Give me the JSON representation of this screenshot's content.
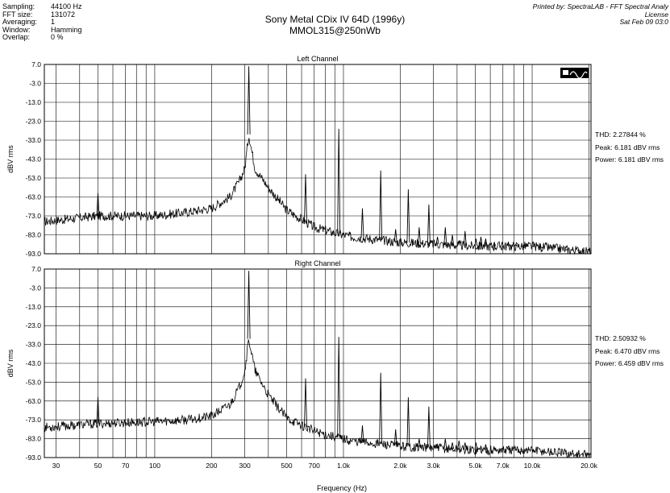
{
  "info": {
    "rows": [
      {
        "label": "Sampling:",
        "value": "44100 Hz"
      },
      {
        "label": "FFT size:",
        "value": "131072"
      },
      {
        "label": "Averaging:",
        "value": "1"
      },
      {
        "label": "Window:",
        "value": "Hamming"
      },
      {
        "label": "Overlap:",
        "value": "0 %"
      }
    ]
  },
  "header": {
    "title_line1": "Sony Metal CDix IV 64D (1996y)",
    "title_line2": "MMOL315@250nWb",
    "printed_line1": "Printed by: SpectraLAB - FFT Spectral Analy",
    "printed_line2": "License",
    "printed_line3": "Sat Feb 09 03:0"
  },
  "colors": {
    "trace": "#000000",
    "grid": "#000000",
    "background": "#ffffff"
  },
  "icons": {
    "toolbar": "waveform-display-icon"
  },
  "chart_data": [
    {
      "type": "line",
      "title": "Left Channel",
      "xlabel": "Frequency (Hz)",
      "ylabel": "dBV rms",
      "xscale": "log",
      "xlim": [
        26,
        20500
      ],
      "ylim": [
        -93,
        7
      ],
      "yticks": [
        "7.0",
        "-3.0",
        "-13.0",
        "-23.0",
        "-33.0",
        "-43.0",
        "-53.0",
        "-63.0",
        "-73.0",
        "-83.0",
        "-93.0"
      ],
      "grid": true,
      "stats": [
        "THD: 2.27844 %",
        "Peak: 6.181 dBV rms",
        "Power: 6.181 dBV rms"
      ],
      "series": [
        {
          "noise_floor": [
            [
              26,
              -76
            ],
            [
              50,
              -73
            ],
            [
              100,
              -73
            ],
            [
              150,
              -71
            ],
            [
              200,
              -69
            ],
            [
              250,
              -63
            ],
            [
              280,
              -55
            ],
            [
              300,
              -48
            ],
            [
              315,
              -30
            ],
            [
              340,
              -48
            ],
            [
              400,
              -58
            ],
            [
              500,
              -70
            ],
            [
              700,
              -79
            ],
            [
              900,
              -82
            ],
            [
              1100,
              -84
            ],
            [
              2000,
              -87
            ],
            [
              5000,
              -89
            ],
            [
              10000,
              -89
            ],
            [
              20500,
              -92
            ]
          ],
          "peaks": [
            [
              50,
              -61
            ],
            [
              315,
              6
            ],
            [
              630,
              -51
            ],
            [
              945,
              -27
            ],
            [
              1260,
              -69
            ],
            [
              1575,
              -49
            ],
            [
              1890,
              -80
            ],
            [
              2205,
              -59
            ],
            [
              2520,
              -79
            ],
            [
              2835,
              -67
            ],
            [
              3150,
              -84
            ],
            [
              3465,
              -79
            ],
            [
              3780,
              -83
            ],
            [
              4095,
              -86
            ],
            [
              4410,
              -81
            ],
            [
              5040,
              -85
            ],
            [
              5355,
              -84
            ],
            [
              5670,
              -85
            ],
            [
              6300,
              -87
            ],
            [
              6930,
              -87
            ],
            [
              7560,
              -88
            ],
            [
              8190,
              -88
            ],
            [
              8820,
              -89
            ],
            [
              9450,
              -89
            ],
            [
              10080,
              -89
            ],
            [
              11340,
              -90
            ],
            [
              12600,
              -90
            ],
            [
              13860,
              -90
            ],
            [
              15120,
              -91
            ],
            [
              16380,
              -91
            ],
            [
              17640,
              -91
            ]
          ]
        }
      ]
    },
    {
      "type": "line",
      "title": "Right Channel",
      "xlabel": "Frequency (Hz)",
      "ylabel": "dBV rms",
      "xscale": "log",
      "xlim": [
        26,
        20500
      ],
      "ylim": [
        -93,
        7
      ],
      "yticks": [
        "7.0",
        "-3.0",
        "-13.0",
        "-23.0",
        "-33.0",
        "-43.0",
        "-53.0",
        "-63.0",
        "-73.0",
        "-83.0",
        "-93.0"
      ],
      "grid": true,
      "stats": [
        "THD: 2.50932 %",
        "Peak: 6.470 dBV rms",
        "Power: 6.459 dBV rms"
      ],
      "series": [
        {
          "noise_floor": [
            [
              26,
              -77
            ],
            [
              50,
              -75
            ],
            [
              100,
              -74
            ],
            [
              150,
              -73
            ],
            [
              200,
              -71
            ],
            [
              250,
              -65
            ],
            [
              280,
              -56
            ],
            [
              300,
              -47
            ],
            [
              315,
              -30
            ],
            [
              340,
              -47
            ],
            [
              400,
              -60
            ],
            [
              500,
              -72
            ],
            [
              700,
              -79
            ],
            [
              900,
              -82
            ],
            [
              1100,
              -84
            ],
            [
              2000,
              -87
            ],
            [
              5000,
              -89
            ],
            [
              10000,
              -89
            ],
            [
              20500,
              -92
            ]
          ],
          "peaks": [
            [
              50,
              -61
            ],
            [
              315,
              6
            ],
            [
              630,
              -51
            ],
            [
              945,
              -29
            ],
            [
              1260,
              -76
            ],
            [
              1575,
              -48
            ],
            [
              1890,
              -78
            ],
            [
              2205,
              -61
            ],
            [
              2520,
              -83
            ],
            [
              2835,
              -66
            ],
            [
              3150,
              -86
            ],
            [
              3465,
              -83
            ],
            [
              3780,
              -85
            ],
            [
              4095,
              -84
            ],
            [
              4410,
              -85
            ],
            [
              5040,
              -85
            ],
            [
              5355,
              -87
            ],
            [
              5670,
              -86
            ],
            [
              6300,
              -88
            ],
            [
              6930,
              -88
            ],
            [
              7560,
              -88
            ],
            [
              8190,
              -89
            ],
            [
              8820,
              -89
            ],
            [
              9450,
              -89
            ],
            [
              10080,
              -89
            ],
            [
              11340,
              -90
            ],
            [
              12600,
              -90
            ],
            [
              13860,
              -91
            ],
            [
              15120,
              -91
            ],
            [
              16380,
              -91
            ],
            [
              17640,
              -91
            ]
          ]
        }
      ]
    }
  ],
  "xticks": [
    {
      "f": 30,
      "label": "30"
    },
    {
      "f": 50,
      "label": "50"
    },
    {
      "f": 70,
      "label": "70"
    },
    {
      "f": 100,
      "label": "100"
    },
    {
      "f": 200,
      "label": "200"
    },
    {
      "f": 300,
      "label": "300"
    },
    {
      "f": 500,
      "label": "500"
    },
    {
      "f": 700,
      "label": "700"
    },
    {
      "f": 1000,
      "label": "1.0k"
    },
    {
      "f": 2000,
      "label": "2.0k"
    },
    {
      "f": 3000,
      "label": "3.0k"
    },
    {
      "f": 5000,
      "label": "5.0k"
    },
    {
      "f": 7000,
      "label": "7.0k"
    },
    {
      "f": 10000,
      "label": "10.0k"
    },
    {
      "f": 20000,
      "label": "20.0k"
    }
  ]
}
